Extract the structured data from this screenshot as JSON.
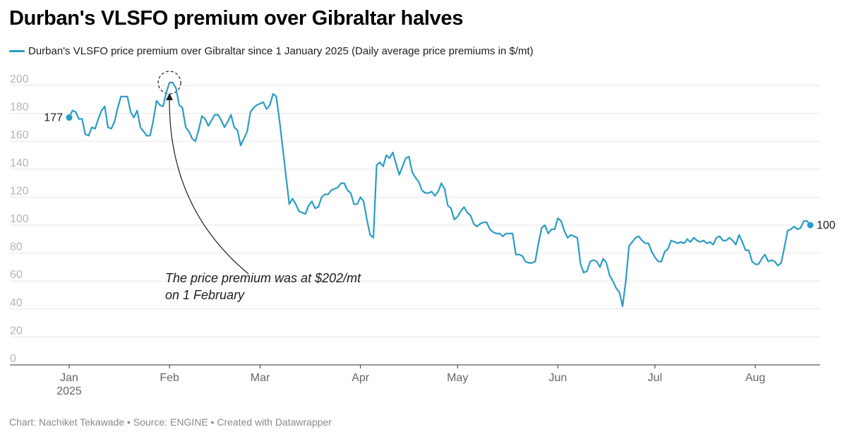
{
  "title": "Durban's VLSFO premium over Gibraltar halves",
  "legend": {
    "label": "Durban's VLSFO price premium over Gibraltar since 1 January 2025 (Daily average price premiums in $/mt)",
    "color": "#2a9dc5"
  },
  "footer": "Chart: Nachiket Tekawade • Source: ENGINE • Created with Datawrapper",
  "chart_data": {
    "type": "line",
    "title": "Durban's VLSFO premium over Gibraltar halves",
    "xlabel": "",
    "ylabel": "",
    "ylim": [
      0,
      200
    ],
    "yticks": [
      "0",
      "20",
      "40",
      "60",
      "80",
      "100",
      "120",
      "140",
      "160",
      "180",
      "200"
    ],
    "grid": true,
    "xticks": [
      {
        "label": "Jan",
        "sublabel": "2025",
        "date": "2025-01-01"
      },
      {
        "label": "Feb",
        "date": "2025-02-01"
      },
      {
        "label": "Mar",
        "date": "2025-03-01"
      },
      {
        "label": "Apr",
        "date": "2025-04-01"
      },
      {
        "label": "May",
        "date": "2025-05-01"
      },
      {
        "label": "Jun",
        "date": "2025-06-01"
      },
      {
        "label": "Jul",
        "date": "2025-07-01"
      },
      {
        "label": "Aug",
        "date": "2025-08-01"
      }
    ],
    "series": [
      {
        "name": "Durban's VLSFO price premium over Gibraltar since 1 January 2025 (Daily average price premiums in $/mt)",
        "color": "#2a9dc5",
        "start_label": "177",
        "end_label": "100",
        "points": [
          [
            "2025-01-01",
            177
          ],
          [
            "2025-01-02",
            182
          ],
          [
            "2025-01-03",
            181
          ],
          [
            "2025-01-04",
            176
          ],
          [
            "2025-01-05",
            176
          ],
          [
            "2025-01-06",
            165
          ],
          [
            "2025-01-07",
            164
          ],
          [
            "2025-01-08",
            170
          ],
          [
            "2025-01-09",
            169
          ],
          [
            "2025-01-10",
            176
          ],
          [
            "2025-01-11",
            182
          ],
          [
            "2025-01-12",
            185
          ],
          [
            "2025-01-13",
            170
          ],
          [
            "2025-01-14",
            169
          ],
          [
            "2025-01-15",
            174
          ],
          [
            "2025-01-16",
            184
          ],
          [
            "2025-01-17",
            192
          ],
          [
            "2025-01-18",
            192
          ],
          [
            "2025-01-19",
            192
          ],
          [
            "2025-01-20",
            181
          ],
          [
            "2025-01-21",
            177
          ],
          [
            "2025-01-22",
            182
          ],
          [
            "2025-01-23",
            170
          ],
          [
            "2025-01-24",
            167
          ],
          [
            "2025-01-25",
            164
          ],
          [
            "2025-01-26",
            164
          ],
          [
            "2025-01-27",
            175
          ],
          [
            "2025-01-28",
            189
          ],
          [
            "2025-01-29",
            186
          ],
          [
            "2025-01-30",
            185
          ],
          [
            "2025-01-31",
            195
          ],
          [
            "2025-02-01",
            202
          ],
          [
            "2025-02-02",
            202
          ],
          [
            "2025-02-03",
            198
          ],
          [
            "2025-02-04",
            186
          ],
          [
            "2025-02-05",
            184
          ],
          [
            "2025-02-06",
            170
          ],
          [
            "2025-02-07",
            167
          ],
          [
            "2025-02-08",
            162
          ],
          [
            "2025-02-09",
            160
          ],
          [
            "2025-02-10",
            168
          ],
          [
            "2025-02-11",
            178
          ],
          [
            "2025-02-12",
            176
          ],
          [
            "2025-02-13",
            171
          ],
          [
            "2025-02-14",
            175
          ],
          [
            "2025-02-15",
            179
          ],
          [
            "2025-02-16",
            179
          ],
          [
            "2025-02-17",
            175
          ],
          [
            "2025-02-18",
            170
          ],
          [
            "2025-02-19",
            174
          ],
          [
            "2025-02-20",
            179
          ],
          [
            "2025-02-21",
            170
          ],
          [
            "2025-02-22",
            168
          ],
          [
            "2025-02-23",
            157
          ],
          [
            "2025-02-24",
            162
          ],
          [
            "2025-02-25",
            167
          ],
          [
            "2025-02-26",
            181
          ],
          [
            "2025-02-27",
            184
          ],
          [
            "2025-02-28",
            186
          ],
          [
            "2025-03-01",
            187
          ],
          [
            "2025-03-02",
            188
          ],
          [
            "2025-03-03",
            183
          ],
          [
            "2025-03-04",
            186
          ],
          [
            "2025-03-05",
            194
          ],
          [
            "2025-03-06",
            192
          ],
          [
            "2025-03-07",
            175
          ],
          [
            "2025-03-08",
            155
          ],
          [
            "2025-03-09",
            135
          ],
          [
            "2025-03-10",
            115
          ],
          [
            "2025-03-11",
            119
          ],
          [
            "2025-03-12",
            115
          ],
          [
            "2025-03-13",
            110
          ],
          [
            "2025-03-14",
            109
          ],
          [
            "2025-03-15",
            108
          ],
          [
            "2025-03-16",
            114
          ],
          [
            "2025-03-17",
            117
          ],
          [
            "2025-03-18",
            112
          ],
          [
            "2025-03-19",
            113
          ],
          [
            "2025-03-20",
            120
          ],
          [
            "2025-03-21",
            122
          ],
          [
            "2025-03-22",
            122
          ],
          [
            "2025-03-23",
            125
          ],
          [
            "2025-03-24",
            126
          ],
          [
            "2025-03-25",
            127
          ],
          [
            "2025-03-26",
            130
          ],
          [
            "2025-03-27",
            130
          ],
          [
            "2025-03-28",
            125
          ],
          [
            "2025-03-29",
            123
          ],
          [
            "2025-03-30",
            115
          ],
          [
            "2025-03-31",
            115
          ],
          [
            "2025-04-01",
            120
          ],
          [
            "2025-04-02",
            117
          ],
          [
            "2025-04-03",
            104
          ],
          [
            "2025-04-04",
            93
          ],
          [
            "2025-04-05",
            91
          ],
          [
            "2025-04-06",
            143
          ],
          [
            "2025-04-07",
            145
          ],
          [
            "2025-04-08",
            142
          ],
          [
            "2025-04-09",
            150
          ],
          [
            "2025-04-10",
            148
          ],
          [
            "2025-04-11",
            152
          ],
          [
            "2025-04-12",
            144
          ],
          [
            "2025-04-13",
            136
          ],
          [
            "2025-04-14",
            142
          ],
          [
            "2025-04-15",
            148
          ],
          [
            "2025-04-16",
            149
          ],
          [
            "2025-04-17",
            138
          ],
          [
            "2025-04-18",
            134
          ],
          [
            "2025-04-19",
            131
          ],
          [
            "2025-04-20",
            125
          ],
          [
            "2025-04-21",
            123
          ],
          [
            "2025-04-22",
            123
          ],
          [
            "2025-04-23",
            124
          ],
          [
            "2025-04-24",
            121
          ],
          [
            "2025-04-25",
            124
          ],
          [
            "2025-04-26",
            130
          ],
          [
            "2025-04-27",
            126
          ],
          [
            "2025-04-28",
            114
          ],
          [
            "2025-04-29",
            112
          ],
          [
            "2025-04-30",
            104
          ],
          [
            "2025-05-01",
            106
          ],
          [
            "2025-05-02",
            110
          ],
          [
            "2025-05-03",
            113
          ],
          [
            "2025-05-04",
            109
          ],
          [
            "2025-05-05",
            107
          ],
          [
            "2025-05-06",
            101
          ],
          [
            "2025-05-07",
            99
          ],
          [
            "2025-05-08",
            101
          ],
          [
            "2025-05-09",
            102
          ],
          [
            "2025-05-10",
            102
          ],
          [
            "2025-05-11",
            97
          ],
          [
            "2025-05-12",
            95
          ],
          [
            "2025-05-13",
            94
          ],
          [
            "2025-05-14",
            94
          ],
          [
            "2025-05-15",
            92
          ],
          [
            "2025-05-16",
            94
          ],
          [
            "2025-05-17",
            94
          ],
          [
            "2025-05-18",
            94
          ],
          [
            "2025-05-19",
            79
          ],
          [
            "2025-05-20",
            79
          ],
          [
            "2025-05-21",
            78
          ],
          [
            "2025-05-22",
            74
          ],
          [
            "2025-05-23",
            73
          ],
          [
            "2025-05-24",
            73
          ],
          [
            "2025-05-25",
            74
          ],
          [
            "2025-05-26",
            87
          ],
          [
            "2025-05-27",
            98
          ],
          [
            "2025-05-28",
            100
          ],
          [
            "2025-05-29",
            94
          ],
          [
            "2025-05-30",
            97
          ],
          [
            "2025-05-31",
            97
          ],
          [
            "2025-06-01",
            105
          ],
          [
            "2025-06-02",
            103
          ],
          [
            "2025-06-03",
            96
          ],
          [
            "2025-06-04",
            91
          ],
          [
            "2025-06-05",
            93
          ],
          [
            "2025-06-06",
            92
          ],
          [
            "2025-06-07",
            91
          ],
          [
            "2025-06-08",
            72
          ],
          [
            "2025-06-09",
            66
          ],
          [
            "2025-06-10",
            67
          ],
          [
            "2025-06-11",
            74
          ],
          [
            "2025-06-12",
            75
          ],
          [
            "2025-06-13",
            74
          ],
          [
            "2025-06-14",
            70
          ],
          [
            "2025-06-15",
            76
          ],
          [
            "2025-06-16",
            73
          ],
          [
            "2025-06-17",
            64
          ],
          [
            "2025-06-18",
            60
          ],
          [
            "2025-06-19",
            55
          ],
          [
            "2025-06-20",
            52
          ],
          [
            "2025-06-21",
            42
          ],
          [
            "2025-06-22",
            60
          ],
          [
            "2025-06-23",
            85
          ],
          [
            "2025-06-24",
            88
          ],
          [
            "2025-06-25",
            91
          ],
          [
            "2025-06-26",
            92
          ],
          [
            "2025-06-27",
            89
          ],
          [
            "2025-06-28",
            87
          ],
          [
            "2025-06-29",
            87
          ],
          [
            "2025-06-30",
            81
          ],
          [
            "2025-07-01",
            77
          ],
          [
            "2025-07-02",
            74
          ],
          [
            "2025-07-03",
            74
          ],
          [
            "2025-07-04",
            81
          ],
          [
            "2025-07-05",
            83
          ],
          [
            "2025-07-06",
            89
          ],
          [
            "2025-07-07",
            88
          ],
          [
            "2025-07-08",
            87
          ],
          [
            "2025-07-09",
            88
          ],
          [
            "2025-07-10",
            87
          ],
          [
            "2025-07-11",
            90
          ],
          [
            "2025-07-12",
            88
          ],
          [
            "2025-07-13",
            91
          ],
          [
            "2025-07-14",
            89
          ],
          [
            "2025-07-15",
            88
          ],
          [
            "2025-07-16",
            89
          ],
          [
            "2025-07-17",
            87
          ],
          [
            "2025-07-18",
            88
          ],
          [
            "2025-07-19",
            86
          ],
          [
            "2025-07-20",
            91
          ],
          [
            "2025-07-21",
            92
          ],
          [
            "2025-07-22",
            89
          ],
          [
            "2025-07-23",
            89
          ],
          [
            "2025-07-24",
            91
          ],
          [
            "2025-07-25",
            89
          ],
          [
            "2025-07-26",
            86
          ],
          [
            "2025-07-27",
            93
          ],
          [
            "2025-07-28",
            88
          ],
          [
            "2025-07-29",
            82
          ],
          [
            "2025-07-30",
            82
          ],
          [
            "2025-07-31",
            74
          ],
          [
            "2025-08-01",
            72
          ],
          [
            "2025-08-02",
            72
          ],
          [
            "2025-08-03",
            76
          ],
          [
            "2025-08-04",
            79
          ],
          [
            "2025-08-05",
            74
          ],
          [
            "2025-08-06",
            75
          ],
          [
            "2025-08-07",
            74
          ],
          [
            "2025-08-08",
            71
          ],
          [
            "2025-08-09",
            73
          ],
          [
            "2025-08-10",
            84
          ],
          [
            "2025-08-11",
            96
          ],
          [
            "2025-08-12",
            97
          ],
          [
            "2025-08-13",
            99
          ],
          [
            "2025-08-14",
            97
          ],
          [
            "2025-08-15",
            98
          ],
          [
            "2025-08-16",
            103
          ],
          [
            "2025-08-17",
            103
          ],
          [
            "2025-08-18",
            100
          ]
        ]
      }
    ],
    "annotations": [
      {
        "text_line1": "The price premium was at $202/mt",
        "text_line2": "on 1 February",
        "date": "2025-02-01",
        "value": 202
      }
    ]
  }
}
